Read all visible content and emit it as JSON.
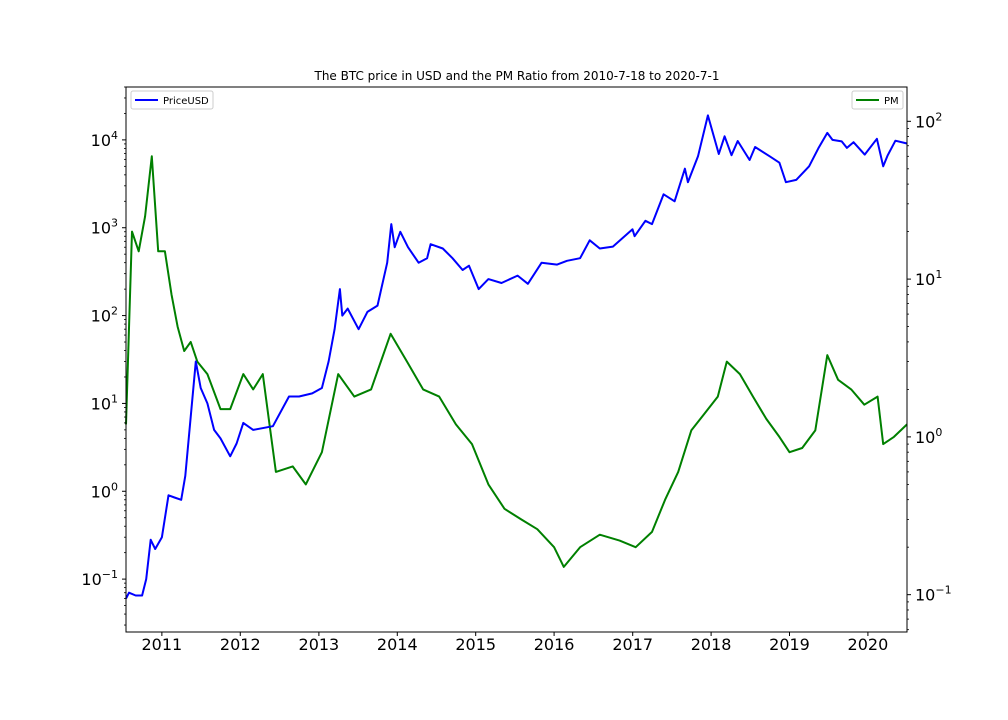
{
  "chart_data": {
    "type": "line",
    "title": "The BTC price in USD and the PM Ratio from 2010-7-18 to 2020-7-1",
    "xlim": [
      "2010-07-18",
      "2020-07-01"
    ],
    "x_ticks": [
      "2011",
      "2012",
      "2013",
      "2014",
      "2015",
      "2016",
      "2017",
      "2018",
      "2019",
      "2020"
    ],
    "left_axis": {
      "scale": "log",
      "ylim": [
        0.025,
        40000
      ],
      "ticks": [
        0.1,
        1,
        10,
        100,
        1000,
        10000
      ],
      "tick_labels": [
        {
          "base": "10",
          "exp": "−1"
        },
        {
          "base": "10",
          "exp": "0"
        },
        {
          "base": "10",
          "exp": "1"
        },
        {
          "base": "10",
          "exp": "2"
        },
        {
          "base": "10",
          "exp": "3"
        },
        {
          "base": "10",
          "exp": "4"
        }
      ]
    },
    "right_axis": {
      "scale": "log",
      "ylim": [
        0.058,
        165
      ],
      "ticks": [
        0.1,
        1,
        10,
        100
      ],
      "tick_labels": [
        {
          "base": "10",
          "exp": "−1"
        },
        {
          "base": "10",
          "exp": "0"
        },
        {
          "base": "10",
          "exp": "1"
        },
        {
          "base": "10",
          "exp": "2"
        }
      ]
    },
    "legends": [
      {
        "label": "PriceUSD",
        "color": "#0000ff",
        "position": "upper-left"
      },
      {
        "label": "PM",
        "color": "#008000",
        "position": "upper-right"
      }
    ],
    "grid": false,
    "series": [
      {
        "name": "PriceUSD",
        "axis": "left",
        "color": "#0000ff",
        "points": [
          [
            "2010-07-18",
            0.06
          ],
          [
            "2010-08-01",
            0.07
          ],
          [
            "2010-09-01",
            0.065
          ],
          [
            "2010-10-01",
            0.065
          ],
          [
            "2010-10-20",
            0.1
          ],
          [
            "2010-11-10",
            0.28
          ],
          [
            "2010-12-01",
            0.22
          ],
          [
            "2011-01-01",
            0.3
          ],
          [
            "2011-02-01",
            0.9
          ],
          [
            "2011-03-01",
            0.85
          ],
          [
            "2011-04-01",
            0.8
          ],
          [
            "2011-04-20",
            1.5
          ],
          [
            "2011-05-15",
            7
          ],
          [
            "2011-06-08",
            30
          ],
          [
            "2011-07-01",
            15
          ],
          [
            "2011-08-01",
            10
          ],
          [
            "2011-09-01",
            5
          ],
          [
            "2011-10-01",
            4
          ],
          [
            "2011-11-15",
            2.5
          ],
          [
            "2011-12-15",
            3.5
          ],
          [
            "2012-01-15",
            6
          ],
          [
            "2012-03-01",
            5
          ],
          [
            "2012-06-01",
            5.5
          ],
          [
            "2012-08-15",
            12
          ],
          [
            "2012-10-01",
            12
          ],
          [
            "2012-12-01",
            13
          ],
          [
            "2013-01-15",
            15
          ],
          [
            "2013-02-15",
            30
          ],
          [
            "2013-03-15",
            70
          ],
          [
            "2013-04-09",
            200
          ],
          [
            "2013-04-20",
            100
          ],
          [
            "2013-05-15",
            120
          ],
          [
            "2013-07-05",
            70
          ],
          [
            "2013-08-15",
            110
          ],
          [
            "2013-10-01",
            130
          ],
          [
            "2013-11-15",
            400
          ],
          [
            "2013-12-04",
            1100
          ],
          [
            "2013-12-20",
            600
          ],
          [
            "2014-01-15",
            900
          ],
          [
            "2014-02-20",
            600
          ],
          [
            "2014-04-10",
            400
          ],
          [
            "2014-05-20",
            450
          ],
          [
            "2014-06-05",
            650
          ],
          [
            "2014-08-01",
            580
          ],
          [
            "2014-09-15",
            450
          ],
          [
            "2014-11-01",
            330
          ],
          [
            "2014-12-01",
            370
          ],
          [
            "2015-01-15",
            200
          ],
          [
            "2015-03-01",
            260
          ],
          [
            "2015-05-01",
            235
          ],
          [
            "2015-07-15",
            285
          ],
          [
            "2015-09-01",
            230
          ],
          [
            "2015-11-04",
            400
          ],
          [
            "2016-01-15",
            380
          ],
          [
            "2016-03-01",
            420
          ],
          [
            "2016-05-01",
            450
          ],
          [
            "2016-06-15",
            720
          ],
          [
            "2016-08-01",
            580
          ],
          [
            "2016-10-01",
            610
          ],
          [
            "2016-12-31",
            960
          ],
          [
            "2017-01-10",
            800
          ],
          [
            "2017-03-01",
            1200
          ],
          [
            "2017-04-01",
            1100
          ],
          [
            "2017-05-25",
            2400
          ],
          [
            "2017-07-15",
            2000
          ],
          [
            "2017-09-01",
            4700
          ],
          [
            "2017-09-15",
            3300
          ],
          [
            "2017-11-01",
            6500
          ],
          [
            "2017-12-17",
            19000
          ],
          [
            "2018-02-06",
            6900
          ],
          [
            "2018-03-05",
            11000
          ],
          [
            "2018-04-06",
            6700
          ],
          [
            "2018-05-05",
            9700
          ],
          [
            "2018-06-29",
            5900
          ],
          [
            "2018-07-25",
            8300
          ],
          [
            "2018-10-01",
            6500
          ],
          [
            "2018-11-15",
            5500
          ],
          [
            "2018-12-15",
            3300
          ],
          [
            "2019-02-01",
            3500
          ],
          [
            "2019-04-02",
            5000
          ],
          [
            "2019-05-15",
            8000
          ],
          [
            "2019-06-26",
            12000
          ],
          [
            "2019-07-20",
            10000
          ],
          [
            "2019-09-01",
            9600
          ],
          [
            "2019-09-25",
            8100
          ],
          [
            "2019-10-26",
            9400
          ],
          [
            "2019-12-17",
            6800
          ],
          [
            "2020-02-12",
            10300
          ],
          [
            "2020-03-12",
            5000
          ],
          [
            "2020-04-01",
            6600
          ],
          [
            "2020-05-08",
            9800
          ],
          [
            "2020-07-01",
            9100
          ]
        ]
      },
      {
        "name": "PM",
        "axis": "right",
        "color": "#008000",
        "points": [
          [
            "2010-07-18",
            1.2
          ],
          [
            "2010-08-15",
            20
          ],
          [
            "2010-09-15",
            15
          ],
          [
            "2010-10-15",
            25
          ],
          [
            "2010-11-15",
            60
          ],
          [
            "2010-12-15",
            15
          ],
          [
            "2011-01-15",
            15
          ],
          [
            "2011-02-15",
            8
          ],
          [
            "2011-03-15",
            5
          ],
          [
            "2011-04-15",
            3.5
          ],
          [
            "2011-05-15",
            4
          ],
          [
            "2011-06-15",
            3
          ],
          [
            "2011-08-01",
            2.5
          ],
          [
            "2011-10-01",
            1.5
          ],
          [
            "2011-11-15",
            1.5
          ],
          [
            "2012-01-15",
            2.5
          ],
          [
            "2012-03-01",
            2
          ],
          [
            "2012-04-15",
            2.5
          ],
          [
            "2012-05-20",
            1.1
          ],
          [
            "2012-06-15",
            0.6
          ],
          [
            "2012-09-01",
            0.65
          ],
          [
            "2012-11-01",
            0.5
          ],
          [
            "2013-01-15",
            0.8
          ],
          [
            "2013-04-01",
            2.5
          ],
          [
            "2013-06-15",
            1.8
          ],
          [
            "2013-09-01",
            2
          ],
          [
            "2013-12-01",
            4.5
          ],
          [
            "2014-02-15",
            3
          ],
          [
            "2014-05-01",
            2
          ],
          [
            "2014-07-15",
            1.8
          ],
          [
            "2014-10-01",
            1.2
          ],
          [
            "2014-12-15",
            0.9
          ],
          [
            "2015-03-01",
            0.5
          ],
          [
            "2015-05-15",
            0.35
          ],
          [
            "2015-08-01",
            0.3
          ],
          [
            "2015-10-15",
            0.26
          ],
          [
            "2016-01-01",
            0.2
          ],
          [
            "2016-02-15",
            0.15
          ],
          [
            "2016-05-01",
            0.2
          ],
          [
            "2016-08-01",
            0.24
          ],
          [
            "2016-11-01",
            0.22
          ],
          [
            "2017-01-15",
            0.2
          ],
          [
            "2017-04-01",
            0.25
          ],
          [
            "2017-06-01",
            0.4
          ],
          [
            "2017-08-01",
            0.6
          ],
          [
            "2017-10-01",
            1.1
          ],
          [
            "2017-12-01",
            1.4
          ],
          [
            "2018-02-01",
            1.8
          ],
          [
            "2018-03-15",
            3
          ],
          [
            "2018-05-15",
            2.5
          ],
          [
            "2018-07-15",
            1.8
          ],
          [
            "2018-09-15",
            1.3
          ],
          [
            "2018-11-15",
            1.0
          ],
          [
            "2019-01-01",
            0.8
          ],
          [
            "2019-03-01",
            0.85
          ],
          [
            "2019-05-01",
            1.1
          ],
          [
            "2019-06-26",
            3.3
          ],
          [
            "2019-08-15",
            2.3
          ],
          [
            "2019-10-15",
            2
          ],
          [
            "2019-12-15",
            1.6
          ],
          [
            "2020-02-15",
            1.8
          ],
          [
            "2020-03-12",
            0.9
          ],
          [
            "2020-05-01",
            1.0
          ],
          [
            "2020-07-01",
            1.2
          ]
        ]
      }
    ]
  }
}
